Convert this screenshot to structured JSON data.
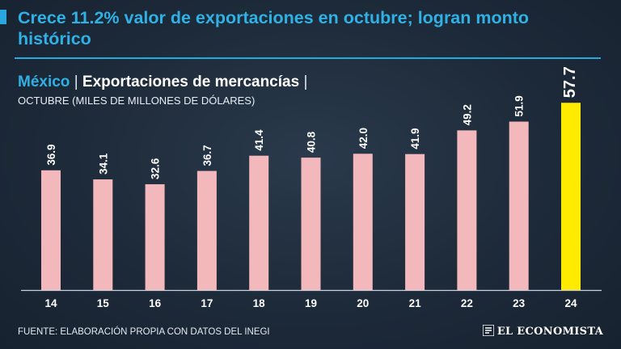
{
  "header": {
    "title": "Crece 11.2% valor de exportaciones en octubre; logran monto histórico",
    "country": "México",
    "separator": "|",
    "series_title": "Exportaciones de mercancías",
    "units": "OCTUBRE (MILES DE MILLONES DE DÓLARES)"
  },
  "footer": {
    "source": "FUENTE: ELABORACIÓN PROPIA CON DATOS DEL INEGI",
    "logo_text": "EL ECONOMISTA"
  },
  "colors": {
    "accent": "#2fb1e6",
    "bar": "#f2b8bc",
    "highlight_bar": "#ffeb00"
  },
  "chart_data": {
    "type": "bar",
    "title": "Exportaciones de mercancías",
    "xlabel": "",
    "ylabel": "Miles de millones de dólares",
    "ylim": [
      0,
      60
    ],
    "grid": false,
    "categories": [
      "14",
      "15",
      "16",
      "17",
      "18",
      "19",
      "20",
      "21",
      "22",
      "23",
      "24"
    ],
    "values": [
      36.9,
      34.1,
      32.6,
      36.7,
      41.4,
      40.8,
      42.0,
      41.9,
      49.2,
      51.9,
      57.7
    ],
    "value_labels": [
      "36.9",
      "34.1",
      "32.6",
      "36.7",
      "41.4",
      "40.8",
      "42.0",
      "41.9",
      "49.2",
      "51.9",
      "57.7"
    ],
    "highlight_index": 10
  }
}
